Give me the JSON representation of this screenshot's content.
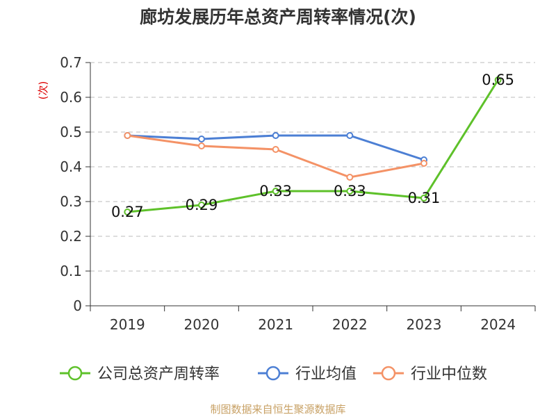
{
  "chart_data": {
    "type": "line",
    "title": "廊坊发展历年总资产周转率情况(次)",
    "ylabel": "(次)",
    "xlabel": "",
    "categories": [
      "2019",
      "2020",
      "2021",
      "2022",
      "2023",
      "2024"
    ],
    "ylim": [
      0,
      0.7
    ],
    "yticks": [
      "0",
      "0.1",
      "0.2",
      "0.3",
      "0.4",
      "0.5",
      "0.6",
      "0.7"
    ],
    "grid": true,
    "legend_position": "bottom",
    "series": [
      {
        "name": "公司总资产周转率",
        "color": "#5ec12a",
        "values": [
          0.27,
          0.29,
          0.33,
          0.33,
          0.31,
          0.65
        ],
        "labels": [
          "0.27",
          "0.29",
          "0.33",
          "0.33",
          "0.31",
          "0.65"
        ]
      },
      {
        "name": "行业均值",
        "color": "#4c7fd4",
        "values": [
          0.49,
          0.48,
          0.49,
          0.49,
          0.42,
          null
        ]
      },
      {
        "name": "行业中位数",
        "color": "#f49266",
        "values": [
          0.49,
          0.46,
          0.45,
          0.37,
          0.41,
          null
        ]
      }
    ]
  },
  "source": "制图数据来自恒生聚源数据库"
}
